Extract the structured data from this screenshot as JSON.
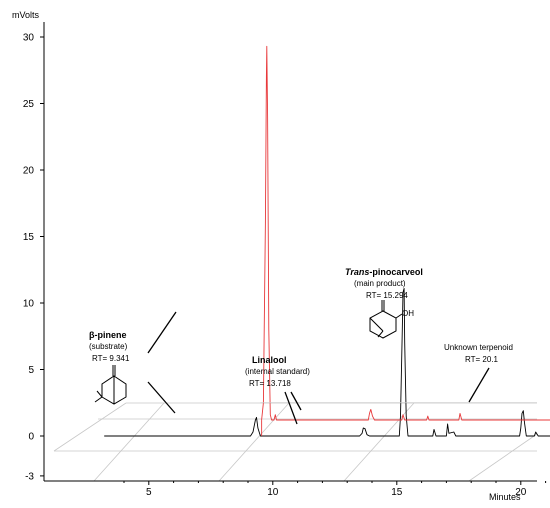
{
  "chart_data": {
    "type": "line",
    "title": "",
    "ylabel": "mVolts",
    "xlabel": "Minutes",
    "xlim": [
      3.2,
      23.0
    ],
    "ylim": [
      -3,
      32
    ],
    "x_ticks": [
      5,
      10,
      15,
      20
    ],
    "y_ticks": [
      -3,
      0,
      5,
      10,
      15,
      20,
      25,
      30
    ],
    "grid": false,
    "perspective_offset_traces": true,
    "series": [
      {
        "color": "#000000",
        "baseline": 0,
        "points": [
          [
            3.2,
            0
          ],
          [
            9.1,
            0
          ],
          [
            9.2,
            0.3
          ],
          [
            9.3,
            1.2
          ],
          [
            9.341,
            1.4
          ],
          [
            9.4,
            0.6
          ],
          [
            9.5,
            0
          ],
          [
            13.5,
            0
          ],
          [
            13.6,
            0.2
          ],
          [
            13.65,
            0.6
          ],
          [
            13.718,
            0.55
          ],
          [
            13.8,
            0.1
          ],
          [
            13.9,
            0
          ],
          [
            15.1,
            0
          ],
          [
            15.15,
            1.5
          ],
          [
            15.22,
            8.0
          ],
          [
            15.25,
            10.8
          ],
          [
            15.294,
            11.1
          ],
          [
            15.32,
            7.0
          ],
          [
            15.38,
            1.5
          ],
          [
            15.45,
            0
          ],
          [
            16.45,
            0
          ],
          [
            16.5,
            0.5
          ],
          [
            16.58,
            0
          ],
          [
            17.0,
            0
          ],
          [
            17.05,
            0.9
          ],
          [
            17.1,
            0.2
          ],
          [
            17.3,
            0.3
          ],
          [
            17.38,
            0
          ],
          [
            19.95,
            0
          ],
          [
            20.0,
            0.6
          ],
          [
            20.05,
            1.7
          ],
          [
            20.1,
            1.9
          ],
          [
            20.15,
            1.0
          ],
          [
            20.22,
            0
          ],
          [
            20.55,
            0
          ],
          [
            20.6,
            0.3
          ],
          [
            20.7,
            0
          ],
          [
            21.5,
            0
          ],
          [
            21.55,
            0.2
          ],
          [
            21.65,
            0
          ],
          [
            23.0,
            0
          ]
        ]
      },
      {
        "color": "#e8383a",
        "baseline": 1.2,
        "points": [
          [
            9.55,
            1.2
          ],
          [
            9.62,
            2.5
          ],
          [
            9.7,
            16.0
          ],
          [
            9.74,
            27.0
          ],
          [
            9.76,
            29.3
          ],
          [
            9.79,
            24.0
          ],
          [
            9.84,
            8.0
          ],
          [
            9.9,
            1.6
          ],
          [
            9.95,
            1.2
          ],
          [
            10.05,
            1.2
          ],
          [
            10.1,
            1.6
          ],
          [
            10.15,
            1.2
          ],
          [
            13.85,
            1.2
          ],
          [
            13.9,
            1.7
          ],
          [
            13.95,
            2.0
          ],
          [
            14.02,
            1.5
          ],
          [
            14.1,
            1.2
          ],
          [
            15.2,
            1.2
          ],
          [
            15.25,
            1.6
          ],
          [
            15.32,
            1.2
          ],
          [
            16.2,
            1.2
          ],
          [
            16.25,
            1.5
          ],
          [
            16.3,
            1.2
          ],
          [
            17.5,
            1.2
          ],
          [
            17.55,
            1.7
          ],
          [
            17.62,
            1.2
          ],
          [
            23.0,
            1.2
          ]
        ]
      }
    ],
    "annotations": [
      {
        "name": "β-pinene",
        "role": "(substrate)",
        "rt_label": "RT= 9.341"
      },
      {
        "name": "Linalool",
        "role": "(internal standard)",
        "rt_label": "RT= 13.718"
      },
      {
        "name_italic": "Trans",
        "name": "-pinocarveol",
        "role": "(main product)",
        "rt_label": "RT= 15.294"
      },
      {
        "name": "Unknown terpenoid",
        "role": "",
        "rt_label": "RT= 20.1"
      }
    ],
    "structure_labels": {
      "oh": "OH"
    }
  }
}
